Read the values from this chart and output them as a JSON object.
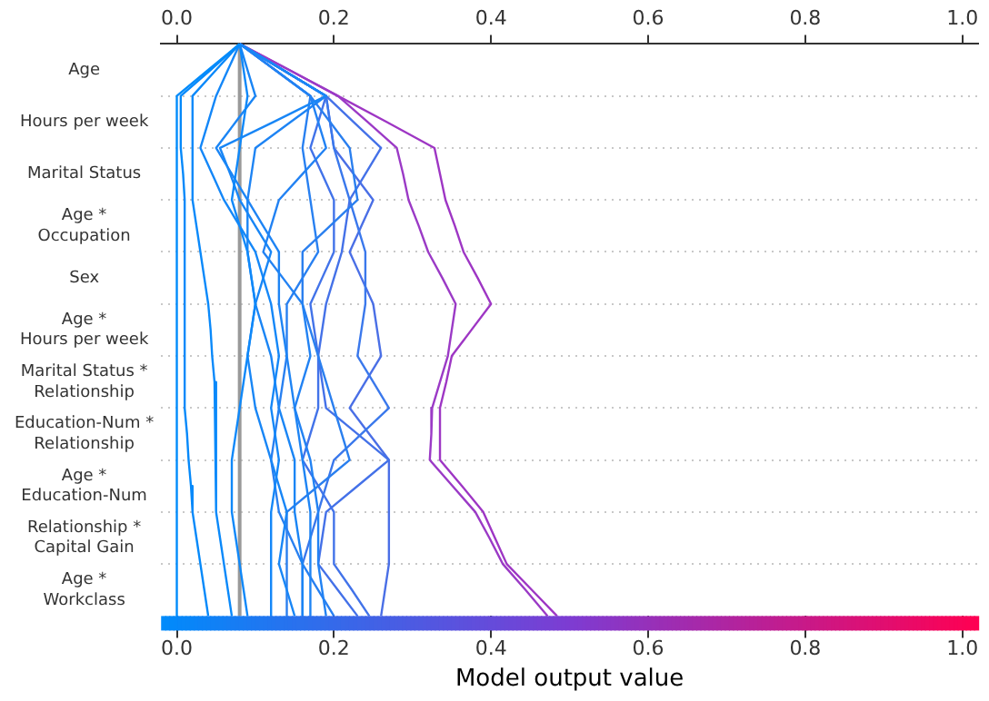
{
  "chart_data": {
    "type": "line",
    "orientation": "horizontal",
    "xlabel": "Model output value",
    "xlim": [
      -0.02,
      1.02
    ],
    "xticks": [
      {
        "value": 0,
        "label": "0.0"
      },
      {
        "value": 0.2,
        "label": "0.2"
      },
      {
        "value": 0.4,
        "label": "0.4"
      },
      {
        "value": 0.6,
        "label": "0.6"
      },
      {
        "value": 0.8,
        "label": "0.8"
      },
      {
        "value": 1,
        "label": "1.0"
      }
    ],
    "x2lim": [
      -0.02,
      1.02
    ],
    "x2ticks": [
      {
        "value": 0,
        "label": "0.0"
      },
      {
        "value": 0.2,
        "label": "0.2"
      },
      {
        "value": 0.4,
        "label": "0.4"
      },
      {
        "value": 0.6,
        "label": "0.6"
      },
      {
        "value": 0.8,
        "label": "0.8"
      },
      {
        "value": 1,
        "label": "1.0"
      }
    ],
    "categories": [
      null,
      "Age",
      null,
      "Hours per week",
      null,
      "Marital Status",
      null,
      "Age *\nOccupation",
      null,
      "Sex",
      null,
      "Age *\nHours per week",
      null,
      "Marital Status *\nRelationship",
      null,
      "Education-Num *\nRelationship",
      null,
      "Age *\nEducation-Num",
      null,
      "Relationship *\nCapital Gain",
      null,
      "Age *\nWorkclass",
      null
    ],
    "grid": "y",
    "ref_lines": [
      {
        "axis": "x",
        "value": 0.08,
        "label": null,
        "color": "#999999"
      }
    ],
    "series": [
      {
        "color": "#008bfb",
        "values": [
          0.08,
          0.04,
          0,
          0,
          0,
          0,
          0,
          0,
          0,
          0,
          0,
          0,
          0,
          0,
          0,
          0,
          0,
          0,
          0,
          0,
          0,
          0,
          0
        ]
      },
      {
        "color": "#0589fa",
        "values": [
          0.08,
          0.043,
          0.005,
          0.005,
          0.005,
          0.008,
          0.01,
          0.01,
          0.01,
          0.01,
          0.01,
          0.01,
          0.01,
          0.01,
          0.01,
          0.013,
          0.015,
          0.018,
          0.02,
          0.025,
          0.03,
          0.035,
          0.04
        ]
      },
      {
        "color": "#0a89fa",
        "values": [
          0.08,
          0.05,
          0.02,
          0.02,
          0.02,
          0.02,
          0.02,
          0.025,
          0.03,
          0.035,
          0.04,
          0.043,
          0.045,
          0.048,
          0.05,
          0.05,
          0.05,
          0.05,
          0.05,
          0.055,
          0.06,
          0.065,
          0.07
        ]
      },
      {
        "color": "#0f88f9",
        "values": [
          0.08,
          0.085,
          0.09,
          0.085,
          0.08,
          0.075,
          0.07,
          0.08,
          0.09,
          0.095,
          0.1,
          0.095,
          0.09,
          0.085,
          0.08,
          0.075,
          0.07,
          0.07,
          0.07,
          0.075,
          0.08,
          0.085,
          0.09
        ]
      },
      {
        "color": "#1487f8",
        "values": [
          0.08,
          0.065,
          0.05,
          0.04,
          0.03,
          0.045,
          0.06,
          0.08,
          0.1,
          0.11,
          0.12,
          0.125,
          0.13,
          0.125,
          0.12,
          0.125,
          0.13,
          0.125,
          0.12,
          0.12,
          0.12,
          0.12,
          0.12
        ]
      },
      {
        "color": "#1886f6",
        "values": [
          0.08,
          0.135,
          0.19,
          0.123,
          0.055,
          0.068,
          0.08,
          0.1,
          0.12,
          0.11,
          0.1,
          0.095,
          0.09,
          0.095,
          0.1,
          0.11,
          0.12,
          0.13,
          0.14,
          0.135,
          0.13,
          0.14,
          0.15
        ]
      },
      {
        "color": "#1a85f5",
        "values": [
          0.08,
          0.09,
          0.1,
          0.075,
          0.05,
          0.07,
          0.09,
          0.09,
          0.09,
          0.095,
          0.1,
          0.11,
          0.12,
          0.125,
          0.13,
          0.14,
          0.15,
          0.15,
          0.15,
          0.155,
          0.16,
          0.16,
          0.16
        ]
      },
      {
        "color": "#1e84f4",
        "values": [
          0.08,
          0.135,
          0.19,
          0.145,
          0.1,
          0.095,
          0.09,
          0.11,
          0.13,
          0.13,
          0.13,
          0.135,
          0.14,
          0.145,
          0.15,
          0.155,
          0.16,
          0.165,
          0.17,
          0.17,
          0.17,
          0.17,
          0.17
        ]
      },
      {
        "color": "#2282f3",
        "values": [
          0.08,
          0.125,
          0.17,
          0.18,
          0.19,
          0.16,
          0.13,
          0.12,
          0.11,
          0.135,
          0.16,
          0.165,
          0.17,
          0.16,
          0.15,
          0.16,
          0.17,
          0.175,
          0.18,
          0.18,
          0.18,
          0.185,
          0.19
        ]
      },
      {
        "color": "#2880f1",
        "values": [
          0.08,
          0.125,
          0.17,
          0.165,
          0.16,
          0.165,
          0.17,
          0.175,
          0.18,
          0.16,
          0.14,
          0.14,
          0.14,
          0.135,
          0.13,
          0.125,
          0.12,
          0.125,
          0.13,
          0.145,
          0.16,
          0.18,
          0.2
        ]
      },
      {
        "color": "#2a7fef",
        "values": [
          0.08,
          0.125,
          0.17,
          0.195,
          0.22,
          0.225,
          0.23,
          0.195,
          0.16,
          0.16,
          0.16,
          0.17,
          0.18,
          0.19,
          0.2,
          0.21,
          0.22,
          0.18,
          0.14,
          0.14,
          0.14,
          0.14,
          0.14
        ]
      },
      {
        "color": "#3a78ec",
        "values": [
          0.08,
          0.135,
          0.19,
          0.195,
          0.2,
          0.21,
          0.22,
          0.23,
          0.24,
          0.24,
          0.24,
          0.235,
          0.23,
          0.25,
          0.27,
          0.235,
          0.2,
          0.19,
          0.18,
          0.17,
          0.16,
          0.16,
          0.16
        ]
      },
      {
        "color": "#4273e9",
        "values": [
          0.08,
          0.135,
          0.19,
          0.18,
          0.17,
          0.185,
          0.2,
          0.2,
          0.2,
          0.185,
          0.17,
          0.175,
          0.18,
          0.18,
          0.18,
          0.17,
          0.16,
          0.18,
          0.2,
          0.2,
          0.2,
          0.223,
          0.245
        ]
      },
      {
        "color": "#4471e8",
        "values": [
          0.08,
          0.135,
          0.19,
          0.225,
          0.26,
          0.24,
          0.22,
          0.215,
          0.21,
          0.2,
          0.19,
          0.185,
          0.18,
          0.185,
          0.19,
          0.23,
          0.27,
          0.23,
          0.19,
          0.185,
          0.18,
          0.205,
          0.23
        ]
      },
      {
        "color": "#4a6fe6",
        "values": [
          0.08,
          0.135,
          0.19,
          0.195,
          0.2,
          0.225,
          0.25,
          0.235,
          0.22,
          0.235,
          0.25,
          0.255,
          0.26,
          0.24,
          0.22,
          0.245,
          0.27,
          0.27,
          0.27,
          0.27,
          0.27,
          0.265,
          0.26
        ]
      },
      {
        "color": "#9b3ac6",
        "values": [
          0.08,
          0.143,
          0.205,
          0.243,
          0.28,
          0.288,
          0.295,
          0.308,
          0.32,
          0.338,
          0.355,
          0.35,
          0.345,
          0.335,
          0.325,
          0.324,
          0.322,
          0.351,
          0.38,
          0.398,
          0.415,
          0.444,
          0.472
        ]
      },
      {
        "color": "#9e36c4",
        "values": [
          0.08,
          0.143,
          0.205,
          0.267,
          0.328,
          0.335,
          0.342,
          0.354,
          0.365,
          0.383,
          0.4,
          0.375,
          0.35,
          0.343,
          0.335,
          0.335,
          0.335,
          0.363,
          0.39,
          0.405,
          0.42,
          0.452,
          0.484
        ]
      }
    ]
  }
}
